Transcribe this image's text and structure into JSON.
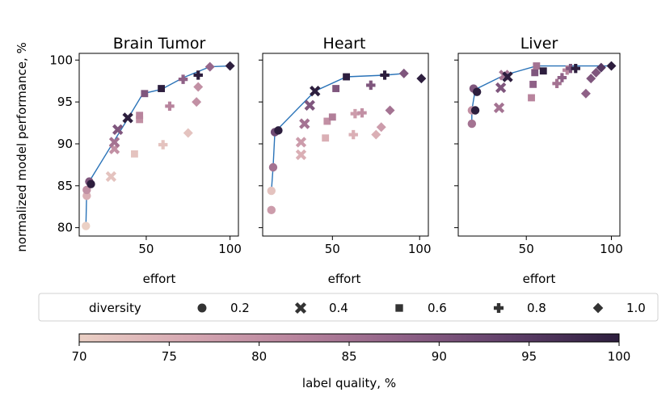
{
  "chart_data": {
    "type": "scatter",
    "ylabel": "normalized model performance, %",
    "xlabel": "effort",
    "xlim": [
      10,
      105
    ],
    "ylim": [
      79,
      100.8
    ],
    "xticks": [
      50,
      100
    ],
    "yticks": [
      80,
      85,
      90,
      95,
      100
    ],
    "legend": {
      "title": "diversity",
      "placement": "bottom",
      "entries": [
        {
          "label": "0.2",
          "marker": "circle"
        },
        {
          "label": "0.4",
          "marker": "x"
        },
        {
          "label": "0.6",
          "marker": "square"
        },
        {
          "label": "0.8",
          "marker": "plus"
        },
        {
          "label": "1.0",
          "marker": "diamond"
        }
      ]
    },
    "colorbar": {
      "label": "label quality, %",
      "min": 70,
      "max": 100,
      "ticks": [
        70,
        75,
        80,
        85,
        90,
        95,
        100
      ],
      "colors": [
        "#ebd0c5",
        "#d6a8b2",
        "#b8849d",
        "#8f6187",
        "#5f3f69",
        "#2d1e3e"
      ]
    },
    "line_color": "#2a73b8",
    "panels": [
      {
        "title": "Brain Tumor",
        "frontier": [
          [
            14,
            80.2
          ],
          [
            14.5,
            84.5
          ],
          [
            16,
            85.5
          ],
          [
            39,
            93
          ],
          [
            48,
            96
          ],
          [
            59,
            96.5
          ],
          [
            72,
            97.9
          ],
          [
            88,
            99.2
          ],
          [
            100,
            99.3
          ]
        ],
        "points": [
          {
            "x": 14,
            "y": 80.2,
            "m": "circle",
            "q": 70
          },
          {
            "x": 14.5,
            "y": 83.8,
            "m": "circle",
            "q": 75
          },
          {
            "x": 14.5,
            "y": 84.5,
            "m": "circle",
            "q": 80
          },
          {
            "x": 16,
            "y": 85.5,
            "m": "circle",
            "q": 90
          },
          {
            "x": 17,
            "y": 85.2,
            "m": "circle",
            "q": 100
          },
          {
            "x": 29,
            "y": 86.1,
            "m": "x",
            "q": 72
          },
          {
            "x": 31,
            "y": 89.4,
            "m": "x",
            "q": 80
          },
          {
            "x": 31,
            "y": 90.2,
            "m": "x",
            "q": 85
          },
          {
            "x": 33,
            "y": 91.7,
            "m": "x",
            "q": 90
          },
          {
            "x": 39,
            "y": 93.1,
            "m": "x",
            "q": 100
          },
          {
            "x": 43,
            "y": 88.8,
            "m": "square",
            "q": 72
          },
          {
            "x": 46,
            "y": 92.9,
            "m": "square",
            "q": 80
          },
          {
            "x": 46,
            "y": 93.4,
            "m": "square",
            "q": 82
          },
          {
            "x": 49,
            "y": 96,
            "m": "square",
            "q": 90
          },
          {
            "x": 59,
            "y": 96.6,
            "m": "square",
            "q": 100
          },
          {
            "x": 60,
            "y": 89.9,
            "m": "plus",
            "q": 72
          },
          {
            "x": 64,
            "y": 94.5,
            "m": "plus",
            "q": 82
          },
          {
            "x": 72,
            "y": 97.7,
            "m": "plus",
            "q": 88
          },
          {
            "x": 81,
            "y": 98.2,
            "m": "plus",
            "q": 100
          },
          {
            "x": 75,
            "y": 91.3,
            "m": "diamond",
            "q": 72
          },
          {
            "x": 80,
            "y": 95,
            "m": "diamond",
            "q": 80
          },
          {
            "x": 81,
            "y": 96.8,
            "m": "diamond",
            "q": 80
          },
          {
            "x": 88,
            "y": 99.2,
            "m": "diamond",
            "q": 87
          },
          {
            "x": 100,
            "y": 99.3,
            "m": "diamond",
            "q": 100
          }
        ]
      },
      {
        "title": "Heart",
        "frontier": [
          [
            15,
            84.4
          ],
          [
            16,
            87.2
          ],
          [
            17,
            91.4
          ],
          [
            40,
            96.3
          ],
          [
            58,
            98
          ],
          [
            80,
            98.2
          ],
          [
            91,
            98.4
          ]
        ],
        "points": [
          {
            "x": 15,
            "y": 82.1,
            "m": "circle",
            "q": 78
          },
          {
            "x": 15,
            "y": 84.4,
            "m": "circle",
            "q": 72
          },
          {
            "x": 16,
            "y": 87.2,
            "m": "circle",
            "q": 85
          },
          {
            "x": 17,
            "y": 91.4,
            "m": "circle",
            "q": 92
          },
          {
            "x": 19,
            "y": 91.6,
            "m": "circle",
            "q": 100
          },
          {
            "x": 32,
            "y": 88.7,
            "m": "x",
            "q": 75
          },
          {
            "x": 32,
            "y": 90.2,
            "m": "x",
            "q": 78
          },
          {
            "x": 34,
            "y": 92.4,
            "m": "x",
            "q": 85
          },
          {
            "x": 37,
            "y": 94.6,
            "m": "x",
            "q": 90
          },
          {
            "x": 40,
            "y": 96.3,
            "m": "x",
            "q": 100
          },
          {
            "x": 46,
            "y": 90.7,
            "m": "square",
            "q": 75
          },
          {
            "x": 47,
            "y": 92.7,
            "m": "square",
            "q": 80
          },
          {
            "x": 50,
            "y": 93.2,
            "m": "square",
            "q": 83
          },
          {
            "x": 52,
            "y": 96.6,
            "m": "square",
            "q": 90
          },
          {
            "x": 58,
            "y": 98,
            "m": "square",
            "q": 100
          },
          {
            "x": 62,
            "y": 91.1,
            "m": "plus",
            "q": 75
          },
          {
            "x": 63,
            "y": 93.6,
            "m": "plus",
            "q": 78
          },
          {
            "x": 67,
            "y": 93.7,
            "m": "plus",
            "q": 80
          },
          {
            "x": 72,
            "y": 97,
            "m": "plus",
            "q": 90
          },
          {
            "x": 80,
            "y": 98.2,
            "m": "plus",
            "q": 100
          },
          {
            "x": 75,
            "y": 91.1,
            "m": "diamond",
            "q": 75
          },
          {
            "x": 78,
            "y": 92,
            "m": "diamond",
            "q": 78
          },
          {
            "x": 83,
            "y": 94,
            "m": "diamond",
            "q": 85
          },
          {
            "x": 91,
            "y": 98.4,
            "m": "diamond",
            "q": 90
          },
          {
            "x": 101,
            "y": 97.8,
            "m": "diamond",
            "q": 100
          }
        ]
      },
      {
        "title": "Liver",
        "frontier": [
          [
            18,
            92.4
          ],
          [
            18,
            94
          ],
          [
            20,
            96.5
          ],
          [
            37,
            98.2
          ],
          [
            56,
            99.3
          ],
          [
            100,
            99.3
          ]
        ],
        "points": [
          {
            "x": 18,
            "y": 92.4,
            "m": "circle",
            "q": 85
          },
          {
            "x": 18,
            "y": 94,
            "m": "circle",
            "q": 80
          },
          {
            "x": 20,
            "y": 94,
            "m": "circle",
            "q": 100
          },
          {
            "x": 19,
            "y": 96.6,
            "m": "circle",
            "q": 90
          },
          {
            "x": 21,
            "y": 96.2,
            "m": "circle",
            "q": 100
          },
          {
            "x": 34,
            "y": 94.3,
            "m": "x",
            "q": 85
          },
          {
            "x": 35,
            "y": 96.7,
            "m": "x",
            "q": 90
          },
          {
            "x": 37,
            "y": 98.2,
            "m": "x",
            "q": 85
          },
          {
            "x": 39,
            "y": 98,
            "m": "x",
            "q": 100
          },
          {
            "x": 53,
            "y": 95.5,
            "m": "square",
            "q": 82
          },
          {
            "x": 54,
            "y": 97.1,
            "m": "square",
            "q": 88
          },
          {
            "x": 55,
            "y": 98.5,
            "m": "square",
            "q": 90
          },
          {
            "x": 56,
            "y": 99.3,
            "m": "square",
            "q": 85
          },
          {
            "x": 60,
            "y": 98.7,
            "m": "square",
            "q": 100
          },
          {
            "x": 68,
            "y": 97.2,
            "m": "plus",
            "q": 85
          },
          {
            "x": 71,
            "y": 97.9,
            "m": "plus",
            "q": 88
          },
          {
            "x": 74,
            "y": 98.8,
            "m": "plus",
            "q": 82
          },
          {
            "x": 76,
            "y": 99,
            "m": "plus",
            "q": 90
          },
          {
            "x": 79,
            "y": 99,
            "m": "plus",
            "q": 100
          },
          {
            "x": 85,
            "y": 96,
            "m": "diamond",
            "q": 88
          },
          {
            "x": 88,
            "y": 97.8,
            "m": "diamond",
            "q": 90
          },
          {
            "x": 91,
            "y": 98.5,
            "m": "diamond",
            "q": 90
          },
          {
            "x": 94,
            "y": 99.1,
            "m": "diamond",
            "q": 95
          },
          {
            "x": 100,
            "y": 99.3,
            "m": "diamond",
            "q": 100
          }
        ]
      }
    ]
  }
}
